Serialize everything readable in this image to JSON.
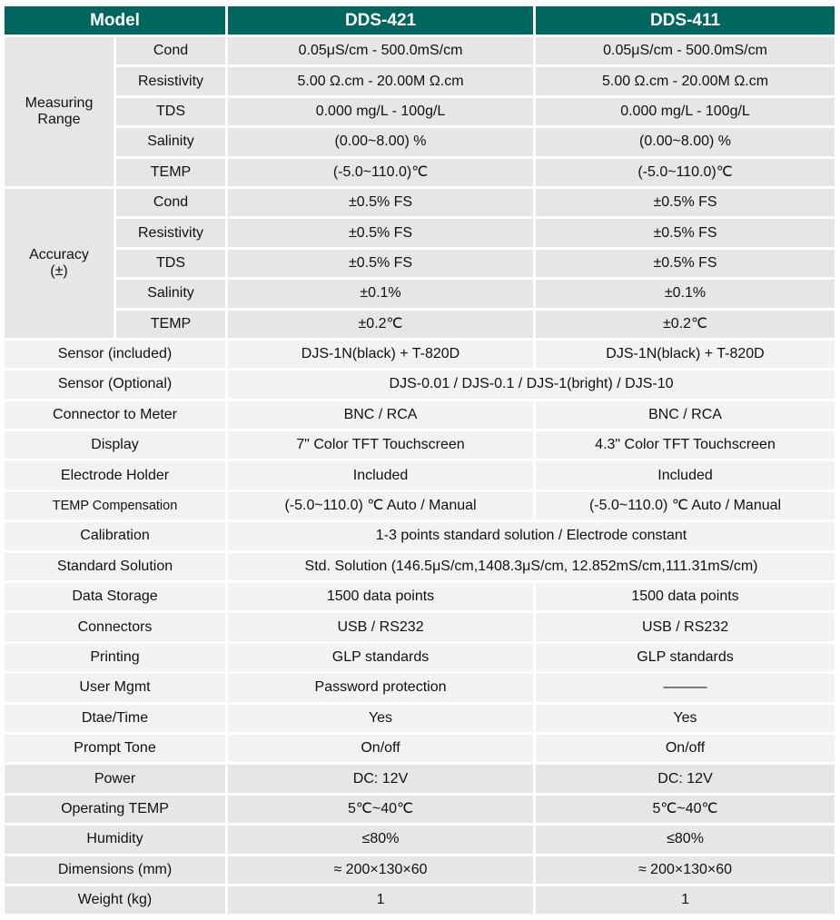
{
  "colors": {
    "header_bg": "#006660",
    "header_text": "#ffffff",
    "row_dark": "#e6e6e6",
    "row_light": "#f2f2f2"
  },
  "header": {
    "model": "Model",
    "col1": "DDS-421",
    "col2": "DDS-411"
  },
  "groups": [
    {
      "label": "Measuring Range",
      "rows": [
        {
          "param": "Cond",
          "a": "0.05μS/cm - 500.0mS/cm",
          "b": "0.05μS/cm - 500.0mS/cm"
        },
        {
          "param": "Resistivity",
          "a": "5.00 Ω.cm - 20.00M Ω.cm",
          "b": "5.00 Ω.cm - 20.00M Ω.cm"
        },
        {
          "param": "TDS",
          "a": "0.000 mg/L - 100g/L",
          "b": "0.000 mg/L - 100g/L"
        },
        {
          "param": "Salinity",
          "a": "(0.00~8.00) %",
          "b": "(0.00~8.00) %"
        },
        {
          "param": "TEMP",
          "a": "(-5.0~110.0)℃",
          "b": "(-5.0~110.0)℃"
        }
      ]
    },
    {
      "label": "Accuracy (±)",
      "rows": [
        {
          "param": "Cond",
          "a": "±0.5% FS",
          "b": "±0.5% FS"
        },
        {
          "param": "Resistivity",
          "a": "±0.5% FS",
          "b": "±0.5% FS"
        },
        {
          "param": "TDS",
          "a": "±0.5% FS",
          "b": "±0.5% FS"
        },
        {
          "param": "Salinity",
          "a": "±0.1%",
          "b": "±0.1%"
        },
        {
          "param": "TEMP",
          "a": "±0.2℃",
          "b": "±0.2℃"
        }
      ]
    }
  ],
  "rows": [
    {
      "label": "Sensor (included)",
      "a": "DJS-1N(black) + T-820D",
      "b": "DJS-1N(black) + T-820D",
      "tone": "light"
    },
    {
      "label": "Sensor (Optional)",
      "span": "DJS-0.01 / DJS-0.1 / DJS-1(bright) / DJS-10",
      "tone": "light"
    },
    {
      "label": "Connector to Meter",
      "a": "BNC / RCA",
      "b": "BNC / RCA",
      "tone": "light"
    },
    {
      "label": "Display",
      "a": "7\" Color TFT Touchscreen",
      "b": "4.3\" Color TFT Touchscreen",
      "tone": "light"
    },
    {
      "label": "Electrode Holder",
      "a": "Included",
      "b": "Included",
      "tone": "light"
    },
    {
      "label": "TEMP Compensation",
      "a": "(-5.0~110.0) ℃ Auto / Manual",
      "b": "(-5.0~110.0) ℃ Auto / Manual",
      "tone": "light",
      "small": true
    },
    {
      "label": "Calibration",
      "span": "1-3 points standard solution / Electrode constant",
      "tone": "light"
    },
    {
      "label": "Standard Solution",
      "span": "Std. Solution (146.5μS/cm,1408.3μS/cm, 12.852mS/cm,111.31mS/cm)",
      "tone": "light"
    },
    {
      "label": "Data Storage",
      "a": "1500 data points",
      "b": "1500 data points",
      "tone": "light"
    },
    {
      "label": "Connectors",
      "a": "USB / RS232",
      "b": "USB / RS232",
      "tone": "light"
    },
    {
      "label": "Printing",
      "a": "GLP standards",
      "b": "GLP standards",
      "tone": "light"
    },
    {
      "label": "User Mgmt",
      "a": "Password protection",
      "b": "———",
      "tone": "light"
    },
    {
      "label": "Dtae/Time",
      "a": "Yes",
      "b": "Yes",
      "tone": "light"
    },
    {
      "label": "Prompt Tone",
      "a": "On/off",
      "b": "On/off",
      "tone": "light"
    },
    {
      "label": "Power",
      "a": "DC: 12V",
      "b": "DC: 12V",
      "tone": "dark"
    },
    {
      "label": "Operating TEMP",
      "a": "5℃~40℃",
      "b": "5℃~40℃",
      "tone": "dark"
    },
    {
      "label": "Humidity",
      "a": "≤80%",
      "b": "≤80%",
      "tone": "dark"
    },
    {
      "label": "Dimensions (mm)",
      "a": "≈ 200×130×60",
      "b": "≈ 200×130×60",
      "tone": "dark"
    },
    {
      "label": "Weight (kg)",
      "a": "1",
      "b": "1",
      "tone": "dark"
    }
  ]
}
